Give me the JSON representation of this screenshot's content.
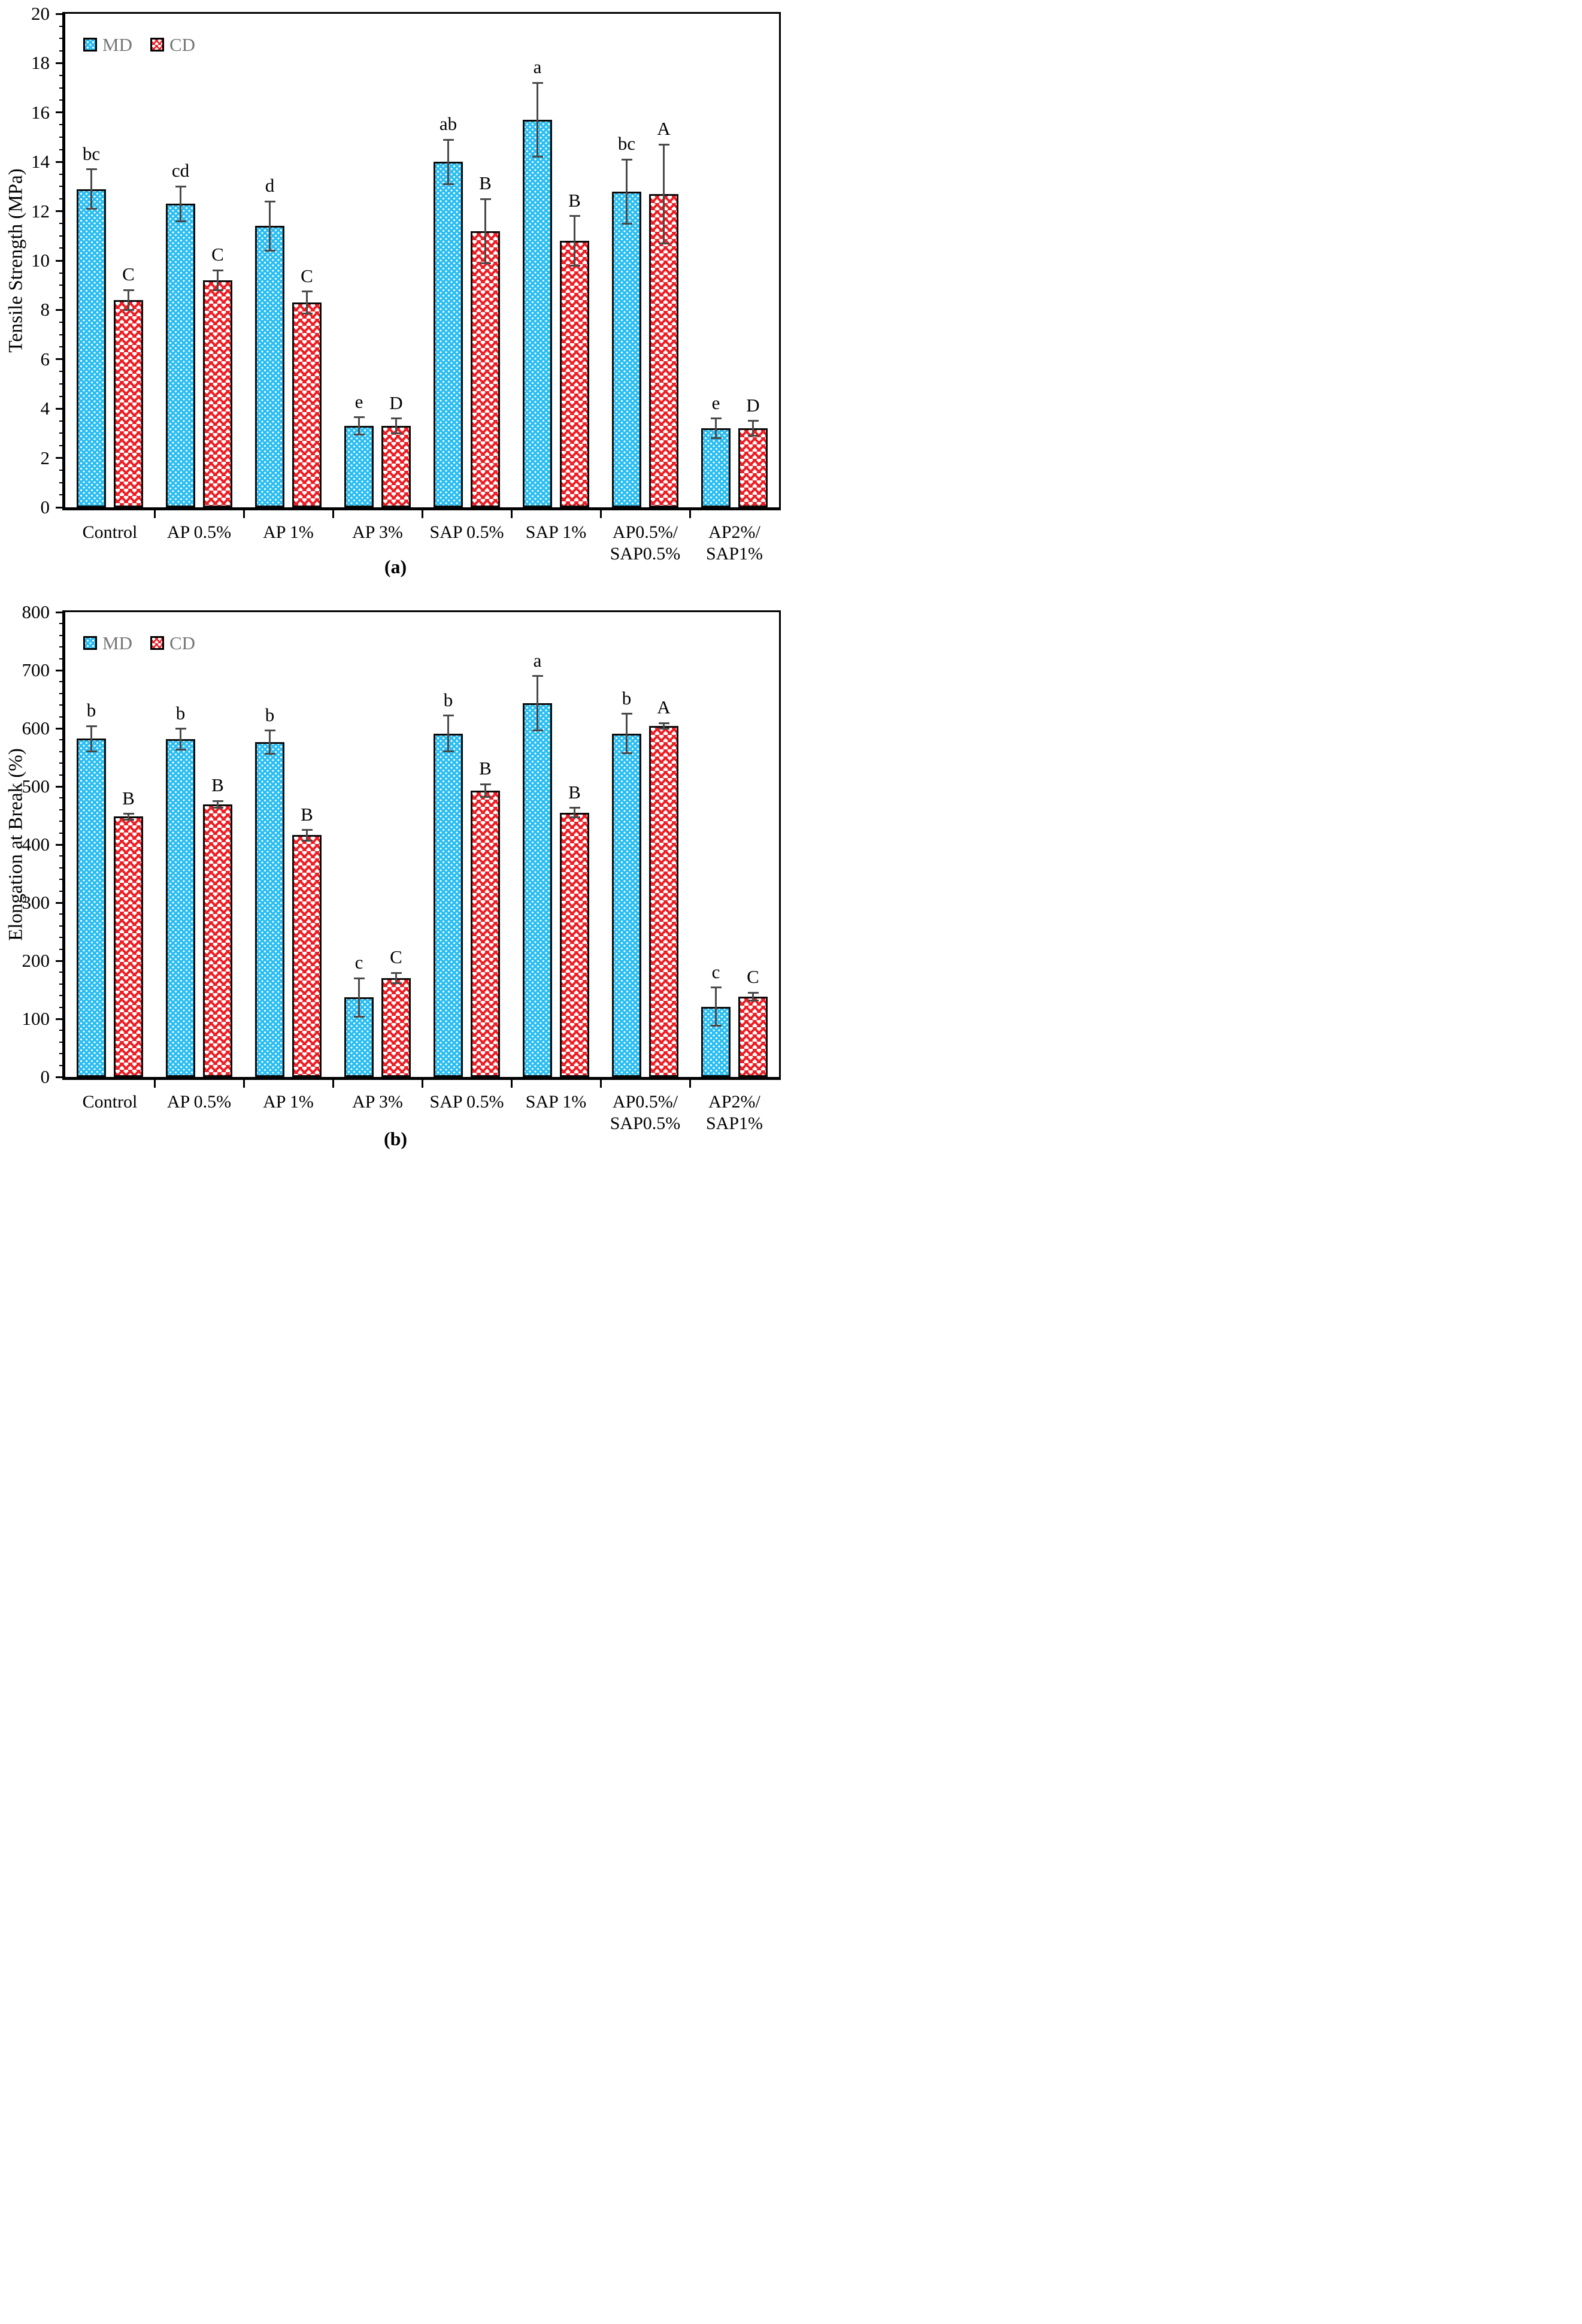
{
  "colors": {
    "md_fill": "#2CBEF2",
    "cd_hatch": "#EE1D23",
    "bar_border": "#000000",
    "error_bar": "#4a4a4a",
    "legend_text": "#767676"
  },
  "chart_data": [
    {
      "type": "bar",
      "caption": "(a)",
      "ylabel": "Tensile Strength (MPa)",
      "ylim": [
        0,
        20
      ],
      "y_major_step": 2,
      "y_minor_step": 0.5,
      "grid": false,
      "legend_position": "top-left-inside",
      "legend": [
        "MD",
        "CD"
      ],
      "categories": [
        "Control",
        "AP 0.5%",
        "AP 1%",
        "AP 3%",
        "SAP 0.5%",
        "SAP 1%",
        "AP0.5%/\nSAP0.5%",
        "AP2%/\nSAP1%"
      ],
      "series": [
        {
          "name": "MD",
          "values": [
            12.9,
            12.3,
            11.4,
            3.3,
            14.0,
            15.7,
            12.8,
            3.2
          ],
          "errors": [
            0.8,
            0.7,
            1.0,
            0.35,
            0.9,
            1.5,
            1.3,
            0.4
          ],
          "letters": [
            "bc",
            "cd",
            "d",
            "e",
            "ab",
            "a",
            "bc",
            "e"
          ]
        },
        {
          "name": "CD",
          "values": [
            8.4,
            9.2,
            8.3,
            3.3,
            11.2,
            10.8,
            12.7,
            3.2
          ],
          "errors": [
            0.4,
            0.4,
            0.45,
            0.3,
            1.3,
            1.0,
            2.0,
            0.3
          ],
          "letters": [
            "C",
            "C",
            "C",
            "D",
            "B",
            "B",
            "A",
            "D"
          ]
        }
      ]
    },
    {
      "type": "bar",
      "caption": "(b)",
      "ylabel": "Elongation at Break (%)",
      "ylim": [
        0,
        800
      ],
      "y_major_step": 100,
      "y_minor_step": 20,
      "grid": false,
      "legend_position": "top-left-inside",
      "legend": [
        "MD",
        "CD"
      ],
      "categories": [
        "Control",
        "AP 0.5%",
        "AP 1%",
        "AP 3%",
        "SAP 0.5%",
        "SAP 1%",
        "AP0.5%/\nSAP0.5%",
        "AP2%/\nSAP1%"
      ],
      "series": [
        {
          "name": "MD",
          "values": [
            582,
            581,
            576,
            137,
            591,
            643,
            591,
            121
          ],
          "errors": [
            22,
            18,
            20,
            33,
            31,
            47,
            34,
            33
          ],
          "letters": [
            "b",
            "b",
            "b",
            "c",
            "b",
            "a",
            "b",
            "c"
          ]
        },
        {
          "name": "CD",
          "values": [
            448,
            469,
            416,
            170,
            493,
            455,
            604,
            138
          ],
          "errors": [
            5,
            6,
            9,
            9,
            11,
            8,
            5,
            7
          ],
          "letters": [
            "B",
            "B",
            "B",
            "C",
            "B",
            "B",
            "A",
            "C"
          ]
        }
      ]
    }
  ]
}
